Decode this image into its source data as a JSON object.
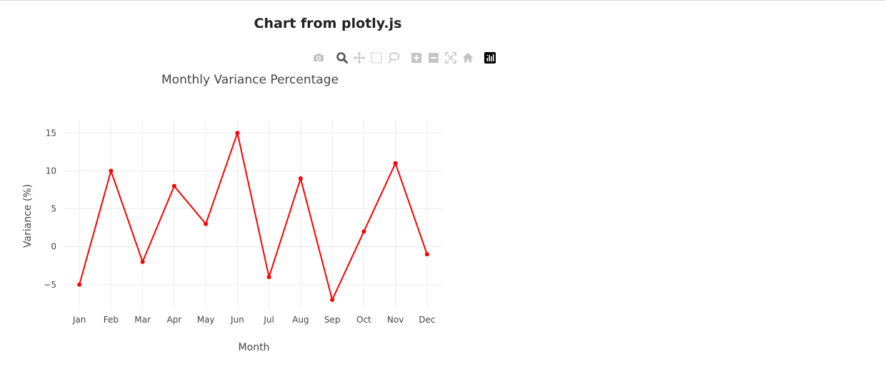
{
  "page": {
    "title": "Chart from plotly.js"
  },
  "modebar": {
    "buttons": [
      {
        "name": "camera-icon",
        "label": "Download plot as a png"
      },
      {
        "name": "zoom-icon",
        "label": "Zoom"
      },
      {
        "name": "pan-icon",
        "label": "Pan"
      },
      {
        "name": "box-select-icon",
        "label": "Box Select"
      },
      {
        "name": "lasso-select-icon",
        "label": "Lasso Select"
      },
      {
        "name": "zoom-in-icon",
        "label": "Zoom in"
      },
      {
        "name": "zoom-out-icon",
        "label": "Zoom out"
      },
      {
        "name": "autoscale-icon",
        "label": "Autoscale"
      },
      {
        "name": "home-icon",
        "label": "Reset axes"
      },
      {
        "name": "plotly-logo-icon",
        "label": "Produced with Plotly"
      }
    ],
    "active": "zoom-icon",
    "colors": {
      "inactive": "#c4c4c4",
      "active": "#555555",
      "logo": "#000000"
    }
  },
  "chart_data": {
    "type": "line",
    "title": "Monthly Variance Percentage",
    "xlabel": "Month",
    "ylabel": "Variance (%)",
    "categories": [
      "Jan",
      "Feb",
      "Mar",
      "Apr",
      "May",
      "Jun",
      "Jul",
      "Aug",
      "Sep",
      "Oct",
      "Nov",
      "Dec"
    ],
    "series": [
      {
        "values": [
          -5,
          10,
          -2,
          8,
          3,
          15,
          -4,
          9,
          -7,
          2,
          11,
          -1
        ],
        "color": "#ff0000",
        "mode": "lines+markers"
      }
    ],
    "ylim": [
      -8.22,
      16.72
    ],
    "yticks": [
      -5,
      0,
      5,
      10,
      15
    ],
    "ytick_labels": [
      "−5",
      "0",
      "5",
      "10",
      "15"
    ],
    "grid": true,
    "legend": "none"
  }
}
